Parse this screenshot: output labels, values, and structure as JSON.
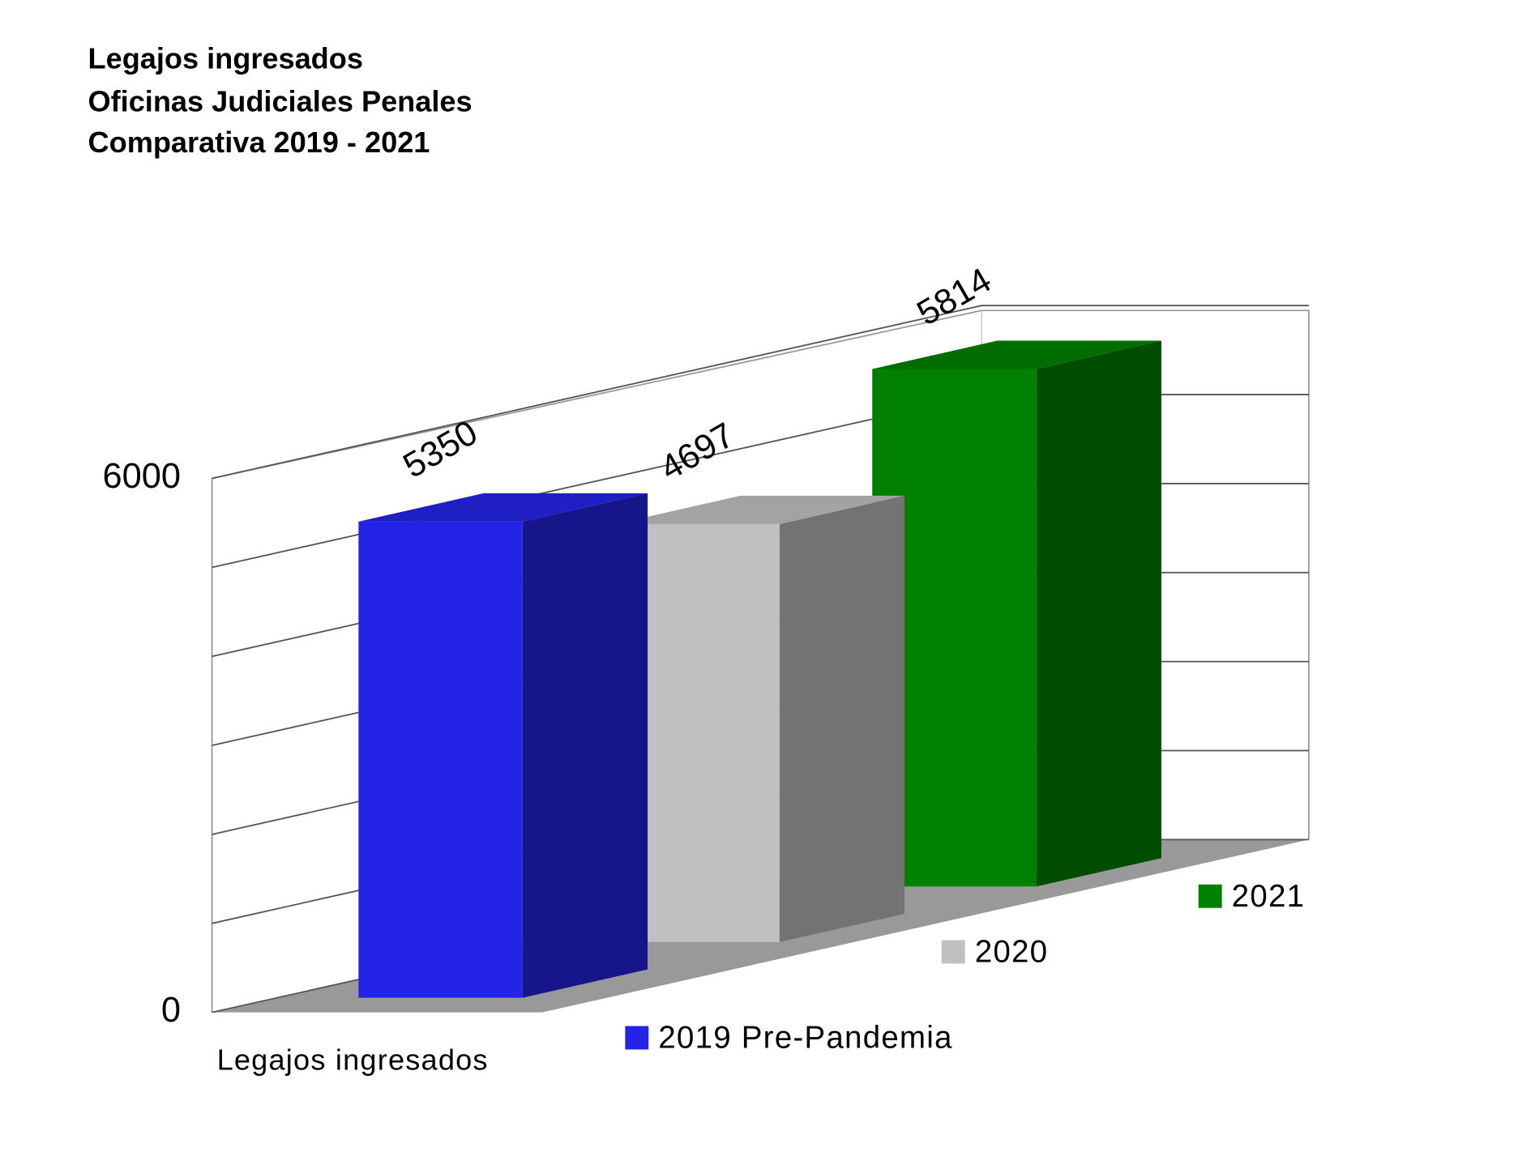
{
  "chart_data": {
    "type": "bar3d",
    "title": [
      "Legajos ingresados",
      "Oficinas Judiciales Penales",
      "Comparativa 2019 - 2021"
    ],
    "categories": [
      "Legajos ingresados"
    ],
    "series": [
      {
        "name": "2019 Pre-Pandemia",
        "color": "#2424e6",
        "values": [
          5350
        ]
      },
      {
        "name": "2020",
        "color": "#c0c0c0",
        "values": [
          4697
        ]
      },
      {
        "name": "2021",
        "color": "#008000",
        "values": [
          5814
        ]
      }
    ],
    "ylim": [
      0,
      6000
    ],
    "yticks": [
      0,
      6000
    ],
    "minor_yticks": [
      1000,
      2000,
      3000,
      4000,
      5000
    ],
    "grid": true
  }
}
